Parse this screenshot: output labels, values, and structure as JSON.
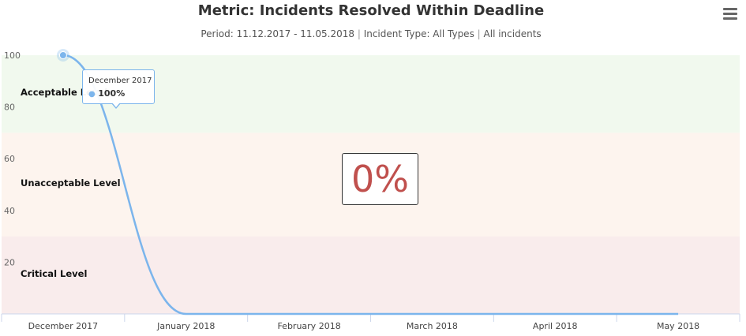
{
  "header": {
    "title": "Metric: Incidents Resolved Within Deadline",
    "subtitle_period": "Period: 11.12.2017 - 11.05.2018",
    "subtitle_type": "Incident Type: All Types",
    "subtitle_scope": "All incidents",
    "separator": "|",
    "menu_icon": "hamburger-menu-icon"
  },
  "summary": {
    "value_label": "0%",
    "color": "#c0504d"
  },
  "tooltip": {
    "month": "December 2017",
    "value": "100%"
  },
  "chart_data": {
    "type": "line",
    "title": "Metric: Incidents Resolved Within Deadline",
    "categories": [
      "December 2017",
      "January 2018",
      "February 2018",
      "March 2018",
      "April 2018",
      "May 2018"
    ],
    "series": [
      {
        "values": [
          100,
          0,
          0,
          0,
          0,
          0
        ],
        "color": "#7cb5ec"
      }
    ],
    "ylim": [
      0,
      100
    ],
    "yticks": [
      20,
      40,
      60,
      80,
      100
    ],
    "grid": false,
    "legend": "none",
    "bands": [
      {
        "label": "Acceptable Level",
        "from": 70,
        "to": 100,
        "color": "#f1f9ee"
      },
      {
        "label": "Unacceptable Level",
        "from": 30,
        "to": 70,
        "color": "#fdf4ee"
      },
      {
        "label": "Critical Level",
        "from": 0,
        "to": 30,
        "color": "#f9ecec"
      }
    ]
  }
}
